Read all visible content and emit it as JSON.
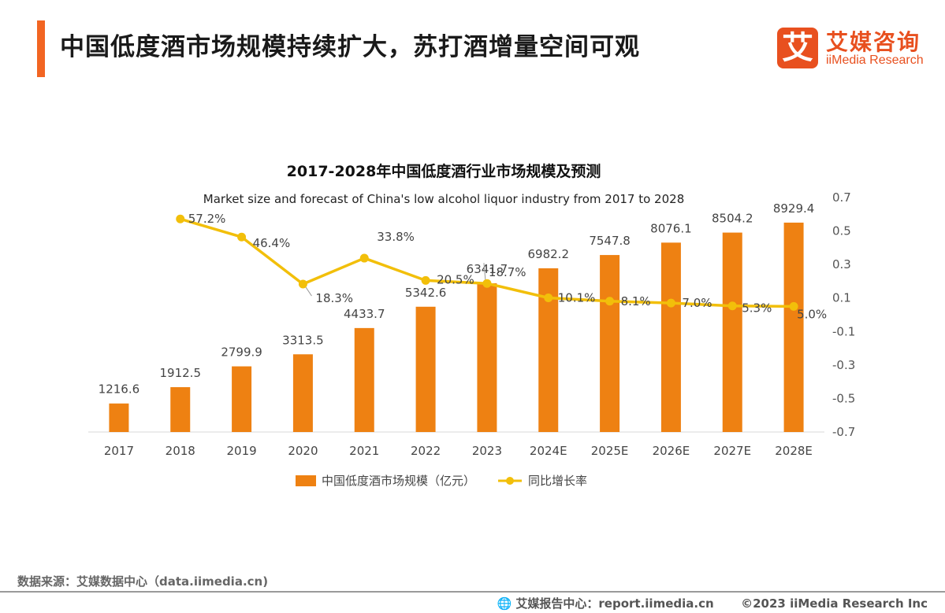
{
  "header": {
    "title": "中国低度酒市场规模持续扩大，苏打酒增量空间可观",
    "logo_mark": "艾",
    "logo_cn": "艾媒咨询",
    "logo_en": "iiMedia Research"
  },
  "footer": {
    "source": "数据来源：艾媒数据中心（data.iimedia.cn)",
    "report_center": "艾媒报告中心：report.iimedia.cn",
    "copyright": "©2023  iiMedia Research  Inc"
  },
  "colors": {
    "bar": "#ee8112",
    "line": "#f2bf0a",
    "accent": "#f26522"
  },
  "chart_data": {
    "type": "bar",
    "title": "2017-2028年中国低度酒行业市场规模及预测",
    "subtitle": "Market size and forecast of China's low alcohol liquor industry from 2017 to 2028",
    "categories": [
      "2017",
      "2018",
      "2019",
      "2020",
      "2021",
      "2022",
      "2023",
      "2024E",
      "2025E",
      "2026E",
      "2027E",
      "2028E"
    ],
    "series": [
      {
        "name": "中国低度酒市场规模（亿元）",
        "type": "bar",
        "axis": "left",
        "values": [
          1216.6,
          1912.5,
          2799.9,
          3313.5,
          4433.7,
          5342.6,
          6341.7,
          6982.2,
          7547.8,
          8076.1,
          8504.2,
          8929.4
        ],
        "labels": [
          "1216.6",
          "1912.5",
          "2799.9",
          "3313.5",
          "4433.7",
          "5342.6",
          "6341.7",
          "6982.2",
          "7547.8",
          "8076.1",
          "8504.2",
          "8929.4"
        ]
      },
      {
        "name": "同比增长率",
        "type": "line",
        "axis": "right",
        "values": [
          null,
          0.572,
          0.464,
          0.183,
          0.338,
          0.205,
          0.187,
          0.101,
          0.081,
          0.07,
          0.053,
          0.05
        ],
        "labels": [
          "",
          "57.2%",
          "46.4%",
          "18.3%",
          "33.8%",
          "20.5%",
          "18.7%",
          "10.1%",
          "8.1%",
          "7.0%",
          "5.3%",
          "5.0%"
        ]
      }
    ],
    "y_left_range": [
      0,
      10000
    ],
    "y_right_range": [
      -0.7,
      0.7
    ],
    "y_right_ticks": [
      "0.7",
      "0.5",
      "0.3",
      "0.1",
      "-0.1",
      "-0.3",
      "-0.5",
      "-0.7"
    ],
    "legend_position": "bottom",
    "grid": false
  }
}
